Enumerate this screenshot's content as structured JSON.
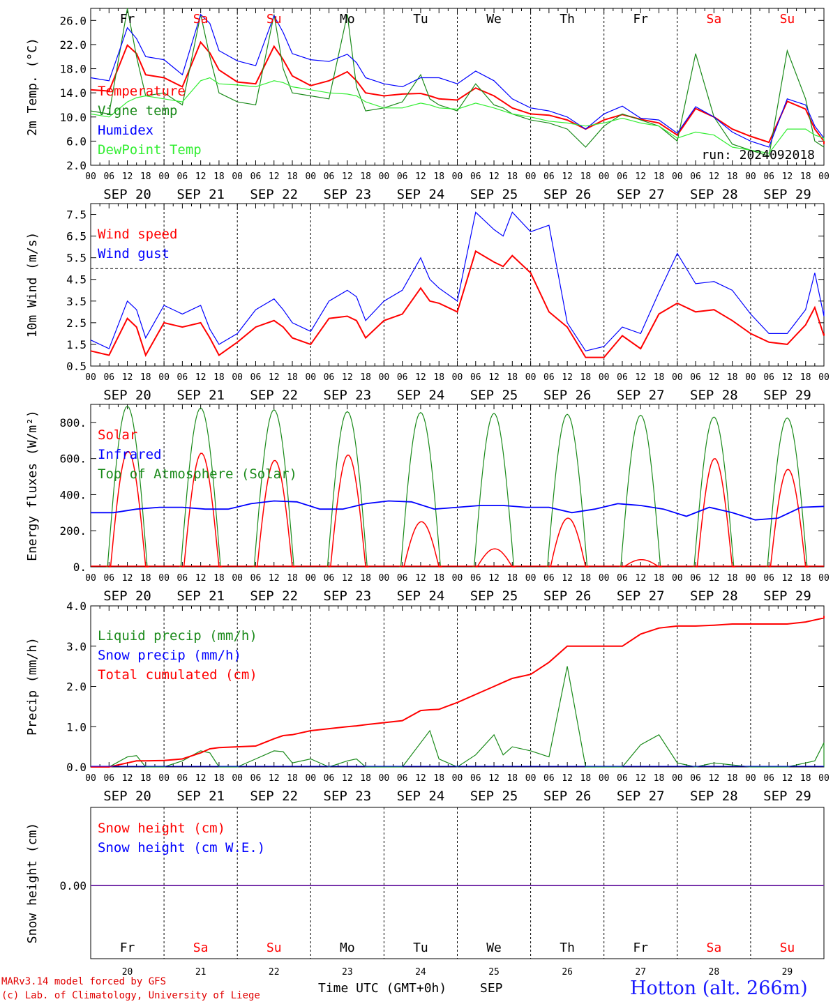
{
  "colors": {
    "red": "#ff0000",
    "green": "#1a8a1a",
    "blue": "#0000ff",
    "lime": "#33ee33",
    "purple": "#7733aa"
  },
  "chart_data": [
    {
      "type": "line",
      "ylabel": "2m Temp. (°C)",
      "ylim": [
        2.0,
        28.0
      ],
      "yticks": [
        "2.0",
        "6.0",
        "10.0",
        "14.0",
        "18.0",
        "22.0",
        "26.0"
      ],
      "run_label": "run: 2024092018",
      "x_hours": [
        0,
        6,
        12,
        15,
        18,
        24,
        30,
        36,
        39,
        42,
        48,
        54,
        60,
        63,
        66,
        72,
        78,
        84,
        87,
        90,
        96,
        102,
        108,
        111,
        114,
        120,
        126,
        132,
        135,
        138,
        144,
        150,
        156,
        162,
        168,
        174,
        180,
        186,
        192,
        198,
        204,
        210,
        216,
        222,
        228,
        234,
        237,
        240,
        246
      ],
      "series": [
        {
          "name": "Temperature",
          "color": "red",
          "values": [
            14.5,
            14.3,
            21.9,
            20.5,
            17.0,
            16.5,
            15.0,
            22.4,
            20.6,
            17.8,
            15.8,
            15.5,
            21.7,
            19.5,
            16.8,
            15.2,
            16.0,
            17.5,
            16.0,
            14.0,
            13.5,
            13.8,
            13.9,
            13.5,
            13.0,
            12.8,
            14.8,
            13.5,
            12.5,
            11.5,
            10.5,
            10.3,
            9.5,
            8.0,
            9.5,
            10.4,
            9.6,
            9.0,
            7.0,
            11.4,
            10.0,
            8.0,
            6.8,
            5.8,
            12.6,
            11.3,
            8.0,
            6.0,
            5.5
          ]
        },
        {
          "name": "Vigne temp",
          "color": "green",
          "values": [
            11.0,
            10.5,
            28.0,
            20.0,
            13.5,
            14.0,
            12.0,
            27.0,
            20.0,
            14.0,
            12.5,
            12.0,
            27.0,
            18.0,
            14.0,
            13.5,
            13.0,
            27.0,
            15.0,
            11.0,
            11.5,
            12.5,
            17.0,
            13.0,
            12.0,
            11.0,
            15.5,
            12.0,
            11.5,
            10.5,
            9.5,
            9.0,
            8.0,
            5.0,
            8.5,
            10.5,
            9.5,
            8.5,
            6.0,
            20.5,
            10.0,
            5.5,
            4.5,
            3.5,
            21.0,
            13.0,
            6.0,
            5.0,
            5.0
          ]
        },
        {
          "name": "Humidex",
          "color": "blue",
          "values": [
            16.5,
            16.0,
            24.8,
            23.0,
            20.0,
            19.5,
            17.0,
            27.0,
            25.5,
            21.0,
            19.3,
            18.5,
            26.8,
            24.0,
            20.5,
            19.5,
            19.2,
            20.4,
            19.0,
            16.5,
            15.5,
            15.0,
            16.5,
            16.5,
            16.5,
            15.5,
            17.6,
            16.0,
            14.5,
            13.0,
            11.5,
            11.0,
            10.0,
            8.0,
            10.5,
            11.8,
            9.8,
            9.5,
            7.3,
            11.7,
            10.0,
            7.5,
            6.0,
            5.0,
            13.0,
            12.0,
            8.5,
            6.5,
            6.0
          ]
        },
        {
          "name": "DewPoint Temp",
          "color": "lime",
          "values": [
            10.5,
            10.0,
            12.5,
            13.2,
            13.5,
            13.0,
            12.5,
            16.0,
            16.5,
            15.5,
            15.3,
            15.0,
            16.0,
            15.7,
            15.0,
            14.5,
            14.0,
            13.8,
            13.5,
            12.5,
            11.5,
            11.5,
            12.3,
            12.0,
            11.5,
            11.3,
            12.3,
            11.5,
            11.0,
            10.5,
            10.0,
            9.3,
            9.0,
            8.5,
            9.0,
            9.8,
            9.0,
            8.5,
            6.5,
            7.5,
            7.0,
            5.0,
            4.5,
            4.0,
            8.0,
            8.0,
            7.0,
            6.5,
            6.0
          ]
        }
      ]
    },
    {
      "type": "line",
      "ylabel": "10m Wind (m/s)",
      "ylim": [
        0.5,
        8.0
      ],
      "yticks": [
        "0.5",
        "1.5",
        "2.5",
        "3.5",
        "4.5",
        "5.5",
        "6.5",
        "7.5"
      ],
      "ref_line": 5.0,
      "x_hours": [
        0,
        6,
        12,
        15,
        18,
        24,
        30,
        36,
        39,
        42,
        48,
        54,
        60,
        63,
        66,
        72,
        78,
        84,
        87,
        90,
        96,
        102,
        108,
        111,
        114,
        120,
        126,
        132,
        135,
        138,
        144,
        150,
        156,
        162,
        168,
        174,
        180,
        186,
        192,
        198,
        204,
        210,
        216,
        222,
        228,
        234,
        237,
        240,
        246
      ],
      "series": [
        {
          "name": "Wind speed",
          "color": "red",
          "values": [
            1.2,
            1.0,
            2.7,
            2.3,
            1.0,
            2.5,
            2.3,
            2.5,
            1.8,
            1.0,
            1.6,
            2.3,
            2.6,
            2.3,
            1.8,
            1.5,
            2.7,
            2.8,
            2.6,
            1.8,
            2.6,
            2.9,
            4.1,
            3.5,
            3.4,
            3.0,
            5.8,
            5.3,
            5.1,
            5.6,
            4.8,
            3.0,
            2.3,
            0.9,
            0.9,
            1.9,
            1.3,
            2.9,
            3.4,
            3.0,
            3.1,
            2.6,
            2.0,
            1.6,
            1.5,
            2.4,
            3.2,
            1.9,
            2.0
          ]
        },
        {
          "name": "Wind gust",
          "color": "blue",
          "values": [
            1.7,
            1.3,
            3.5,
            3.1,
            1.8,
            3.3,
            2.9,
            3.3,
            2.2,
            1.5,
            2.0,
            3.1,
            3.6,
            3.1,
            2.5,
            2.1,
            3.5,
            4.0,
            3.7,
            2.6,
            3.5,
            4.0,
            5.5,
            4.5,
            4.1,
            3.5,
            7.6,
            6.8,
            6.5,
            7.6,
            6.7,
            7.0,
            2.5,
            1.2,
            1.4,
            2.3,
            2.0,
            3.9,
            5.7,
            4.3,
            4.4,
            4.0,
            2.9,
            2.0,
            2.0,
            3.1,
            4.8,
            2.8,
            3.1
          ]
        }
      ]
    },
    {
      "type": "line",
      "ylabel": "Energy fluxes (W/m²)",
      "ylim": [
        0,
        900
      ],
      "yticks": [
        "0.",
        "200.",
        "400.",
        "600.",
        "800."
      ],
      "daily_peaks": {
        "toa": [
          890,
          880,
          870,
          860,
          855,
          850,
          845,
          840,
          830,
          825
        ],
        "solar": [
          640,
          630,
          590,
          620,
          250,
          100,
          270,
          40,
          600,
          540
        ]
      },
      "series": [
        {
          "name": "Solar",
          "color": "red"
        },
        {
          "name": "Infrared",
          "color": "blue",
          "values": [
            300,
            300,
            320,
            330,
            330,
            320,
            320,
            350,
            365,
            360,
            320,
            320,
            350,
            365,
            360,
            320,
            330,
            340,
            340,
            330,
            330,
            300,
            320,
            350,
            340,
            320,
            280,
            330,
            300,
            260,
            270,
            330,
            335
          ]
        },
        {
          "name": "Top of Atmosphere (Solar)",
          "color": "green"
        }
      ]
    },
    {
      "type": "line",
      "ylabel": "Precip (mm/h)",
      "ylim": [
        0.0,
        4.0
      ],
      "yticks": [
        "0.0",
        "1.0",
        "2.0",
        "3.0",
        "4.0"
      ],
      "x_hours": [
        0,
        6,
        12,
        15,
        18,
        24,
        30,
        36,
        39,
        42,
        48,
        54,
        60,
        63,
        66,
        72,
        78,
        84,
        87,
        90,
        96,
        102,
        108,
        111,
        114,
        120,
        126,
        132,
        135,
        138,
        144,
        150,
        156,
        162,
        168,
        174,
        180,
        186,
        192,
        198,
        204,
        210,
        216,
        222,
        228,
        234,
        237,
        240,
        246
      ],
      "series": [
        {
          "name": "Liquid precip (mm/h)",
          "color": "green",
          "values": [
            0.0,
            0.0,
            0.25,
            0.28,
            0.0,
            0.0,
            0.15,
            0.4,
            0.35,
            0.0,
            0.0,
            0.2,
            0.4,
            0.38,
            0.1,
            0.2,
            0.0,
            0.15,
            0.2,
            0.0,
            0.0,
            0.0,
            0.6,
            0.9,
            0.2,
            0.0,
            0.3,
            0.8,
            0.3,
            0.5,
            0.4,
            0.25,
            2.5,
            0.0,
            0.0,
            0.0,
            0.55,
            0.8,
            0.1,
            0.0,
            0.1,
            0.05,
            0.0,
            0.0,
            0.0,
            0.1,
            0.15,
            0.6,
            0.0
          ]
        },
        {
          "name": "Snow precip (mm/h)",
          "color": "blue",
          "values": []
        },
        {
          "name": "Total cumulated (cm)",
          "color": "red",
          "values": [
            0.0,
            0.0,
            0.1,
            0.15,
            0.15,
            0.16,
            0.2,
            0.35,
            0.45,
            0.48,
            0.5,
            0.52,
            0.7,
            0.78,
            0.8,
            0.9,
            0.95,
            1.0,
            1.02,
            1.05,
            1.1,
            1.15,
            1.4,
            1.42,
            1.43,
            1.6,
            1.8,
            2.0,
            2.1,
            2.2,
            2.3,
            2.6,
            3.0,
            3.0,
            3.0,
            3.0,
            3.3,
            3.45,
            3.5,
            3.5,
            3.52,
            3.55,
            3.55,
            3.55,
            3.55,
            3.6,
            3.65,
            3.7,
            3.75
          ]
        }
      ]
    },
    {
      "type": "line",
      "ylabel": "Snow height (cm)",
      "yticks": [
        "0.00"
      ],
      "series": [
        {
          "name": "Snow height (cm)",
          "color": "red"
        },
        {
          "name": "Snow height (cm W.E.)",
          "color": "blue"
        }
      ]
    }
  ],
  "days": {
    "weekday_labels": [
      "Fr",
      "Sa",
      "Su",
      "Mo",
      "Tu",
      "We",
      "Th",
      "Fr",
      "Sa",
      "Su"
    ],
    "weekend_flags": [
      false,
      true,
      true,
      false,
      false,
      false,
      false,
      false,
      true,
      true
    ],
    "date_labels": [
      "SEP 20",
      "SEP 21",
      "SEP 22",
      "SEP 23",
      "SEP 24",
      "SEP 25",
      "SEP 26",
      "SEP 27",
      "SEP 28",
      "SEP 29"
    ],
    "day_numbers": [
      "20",
      "21",
      "22",
      "23",
      "24",
      "25",
      "26",
      "27",
      "28",
      "29"
    ],
    "hour_labels": [
      "00",
      "06",
      "12",
      "18"
    ]
  },
  "footer": {
    "model_line": "MARv3.14 model forced by GFS",
    "copyright_line": "(c) Lab. of Climatology, University of Liege",
    "axis_title": "Time UTC (GMT+0h)",
    "month": "SEP",
    "station": "Hotton (alt. 266m)"
  }
}
